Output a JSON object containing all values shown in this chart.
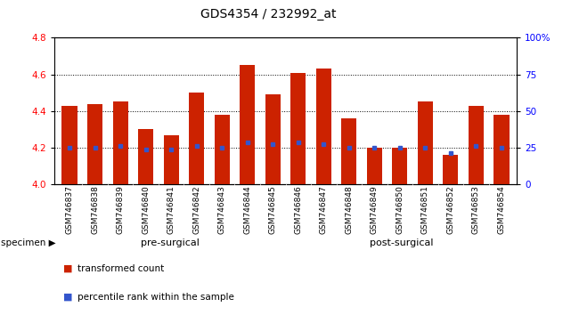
{
  "title": "GDS4354 / 232992_at",
  "samples": [
    "GSM746837",
    "GSM746838",
    "GSM746839",
    "GSM746840",
    "GSM746841",
    "GSM746842",
    "GSM746843",
    "GSM746844",
    "GSM746845",
    "GSM746846",
    "GSM746847",
    "GSM746848",
    "GSM746849",
    "GSM746850",
    "GSM746851",
    "GSM746852",
    "GSM746853",
    "GSM746854"
  ],
  "bar_values": [
    4.43,
    4.44,
    4.45,
    4.3,
    4.27,
    4.5,
    4.38,
    4.65,
    4.49,
    4.61,
    4.63,
    4.36,
    4.2,
    4.2,
    4.45,
    4.16,
    4.43,
    4.38
  ],
  "blue_values": [
    4.2,
    4.2,
    4.21,
    4.19,
    4.19,
    4.21,
    4.2,
    4.23,
    4.22,
    4.23,
    4.22,
    4.2,
    4.2,
    4.2,
    4.2,
    4.17,
    4.21,
    4.2
  ],
  "pre_surgical_count": 9,
  "post_surgical_count": 9,
  "ylim_left": [
    4.0,
    4.8
  ],
  "ylim_right": [
    0,
    100
  ],
  "yticks_left": [
    4.0,
    4.2,
    4.4,
    4.6,
    4.8
  ],
  "yticks_right": [
    0,
    25,
    50,
    75,
    100
  ],
  "ytick_labels_right": [
    "0",
    "25",
    "50",
    "75",
    "100%"
  ],
  "bar_color": "#cc2200",
  "blue_color": "#3355cc",
  "pre_surgical_color": "#bbeeaa",
  "post_surgical_color": "#44cc44",
  "xlabel_area_bg": "#cccccc",
  "legend_red_label": "transformed count",
  "legend_blue_label": "percentile rank within the sample",
  "specimen_label": "specimen",
  "pre_label": "pre-surgical",
  "post_label": "post-surgical"
}
